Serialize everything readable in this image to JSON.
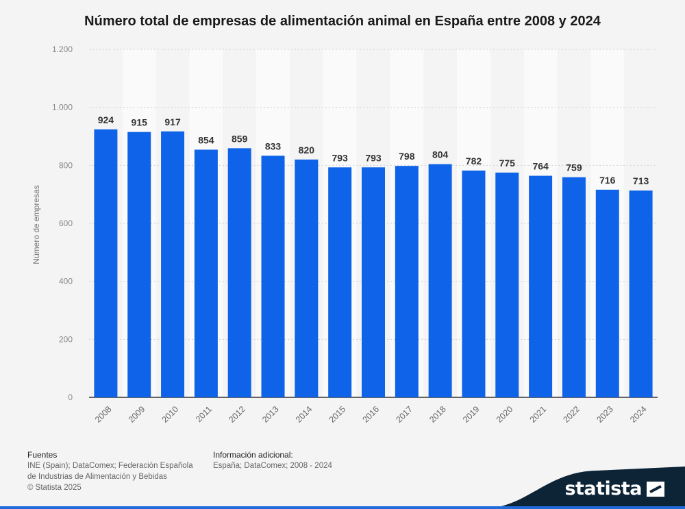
{
  "title": "Número total de empresas de alimentación animal en España entre 2008 y 2024",
  "chart_data": {
    "type": "bar",
    "title": "Número total de empresas de alimentación animal en España entre 2008 y 2024",
    "xlabel": "",
    "ylabel": "Número de empresas",
    "categories": [
      "2008",
      "2009",
      "2010",
      "2011",
      "2012",
      "2013",
      "2014",
      "2015",
      "2016",
      "2017",
      "2018",
      "2019",
      "2020",
      "2021",
      "2022",
      "2023",
      "2024"
    ],
    "values": [
      924,
      915,
      917,
      854,
      859,
      833,
      820,
      793,
      793,
      798,
      804,
      782,
      775,
      764,
      759,
      716,
      713
    ],
    "ylim": [
      0,
      1200
    ],
    "yticks": [
      0,
      200,
      400,
      600,
      800,
      1000,
      1200
    ],
    "ytick_labels": [
      "0",
      "200",
      "400",
      "600",
      "800",
      "1.000",
      "1.200"
    ],
    "grid": "horizontal dotted",
    "bar_color": "#0f63e8",
    "alt_band_color": "#fafafa"
  },
  "footer": {
    "sources_heading": "Fuentes",
    "sources_line1": "INE (Spain); DataComex; Federación Española",
    "sources_line2": "de Industrias de Alimentación y Bebidas",
    "copyright": "© Statista 2025",
    "info_heading": "Información adicional:",
    "info_text": "España; DataComex; 2008 - 2024"
  },
  "brand": {
    "name": "statista",
    "icon": "statista-logo-icon",
    "color": "#0d2437"
  }
}
